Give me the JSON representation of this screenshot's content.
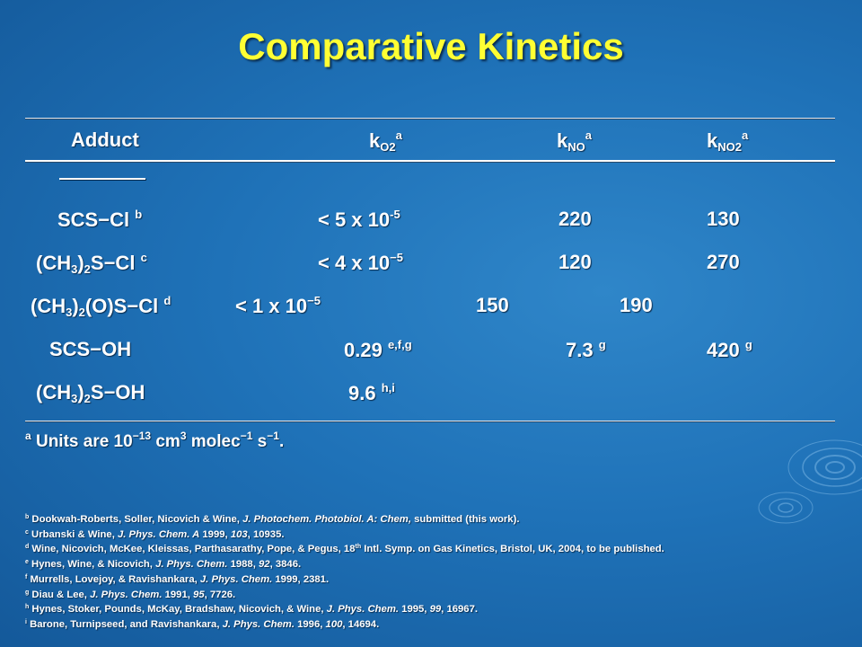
{
  "title": "Comparative Kinetics",
  "header": {
    "adduct": "Adduct",
    "k": "k",
    "sub_o2": "O2",
    "sub_no": "NO",
    "sub_no2": "NO2",
    "note_a": "a",
    "underline": "________"
  },
  "rows": [
    {
      "adduct": "SCS−Cl",
      "adduct_sup": "b",
      "ko2": "< 5 x 10",
      "ko2_exp": "-5",
      "kno": "220",
      "kno2": "130"
    },
    {
      "adduct_pre": "(CH",
      "adduct_sub": "3",
      "adduct_mid": ")",
      "adduct_sub2": "2",
      "adduct_post": "S−Cl",
      "adduct_sup": "c",
      "ko2": "< 4 x 10",
      "ko2_exp": "−5",
      "kno": "120",
      "kno2": "270"
    },
    {
      "adduct_pre": "(CH",
      "adduct_sub": "3",
      "adduct_mid": ")",
      "adduct_sub2": "2",
      "adduct_post": "(O)S−Cl",
      "adduct_sup": "d",
      "ko2": "< 1 x 10",
      "ko2_exp": "−5",
      "kno": "150",
      "kno2": "190"
    },
    {
      "adduct": "SCS−OH",
      "ko2": "0.29",
      "ko2_sup": "e,f,g",
      "kno": "7.3",
      "kno_sup": "g",
      "kno2": "420",
      "kno2_sup": "g"
    },
    {
      "adduct_pre": "(CH",
      "adduct_sub": "3",
      "adduct_mid": ")",
      "adduct_sub2": "2",
      "adduct_post": "S−OH",
      "ko2": "9.6",
      "ko2_sup": "h,i"
    }
  ],
  "units": {
    "sup_a": "a",
    "text1": "Units are 10",
    "exp1": "−13",
    "text2": "cm",
    "exp2": "3",
    "text3": "molec",
    "exp3": "−1",
    "text4": "s",
    "exp4": "−1",
    "text5": "."
  },
  "references": [
    {
      "mark": "b",
      "parts": [
        "Dookwah-Roberts, Soller, Nicovich & Wine, ",
        "J. Photochem. Photobiol. A: Chem,",
        " submitted (this work)."
      ]
    },
    {
      "mark": "c",
      "parts": [
        "Urbanski & Wine, ",
        "J. Phys. Chem. A",
        " 1999, ",
        "103",
        ", 10935."
      ]
    },
    {
      "mark": "d",
      "parts": [
        "Wine, Nicovich, McKee, Kleissas, Parthasarathy, Pope, & Pegus, 18",
        "th",
        " Intl. Symp. on Gas Kinetics, Bristol, UK, 2004, to be published."
      ]
    },
    {
      "mark": "e",
      "parts": [
        "Hynes, Wine, & Nicovich, ",
        "J. Phys. Chem.",
        " 1988, ",
        "92",
        ", 3846."
      ]
    },
    {
      "mark": "f",
      "parts": [
        "Murrells, Lovejoy, & Ravishankara, ",
        "J. Phys. Chem.",
        " 1999, 2381."
      ]
    },
    {
      "mark": "g",
      "parts": [
        "Diau & Lee, ",
        "J. Phys. Chem.",
        " 1991, ",
        "95",
        ", 7726."
      ]
    },
    {
      "mark": "h",
      "parts": [
        "Hynes, Stoker, Pounds, McKay, Bradshaw, Nicovich, & Wine, ",
        "J. Phys. Chem.",
        " 1995, ",
        "99",
        ", 16967."
      ]
    },
    {
      "mark": "i",
      "parts": [
        "Barone, Turnipseed, and Ravishankara, ",
        "J. Phys. Chem.",
        " 1996, ",
        "100",
        ", 14694."
      ]
    }
  ]
}
